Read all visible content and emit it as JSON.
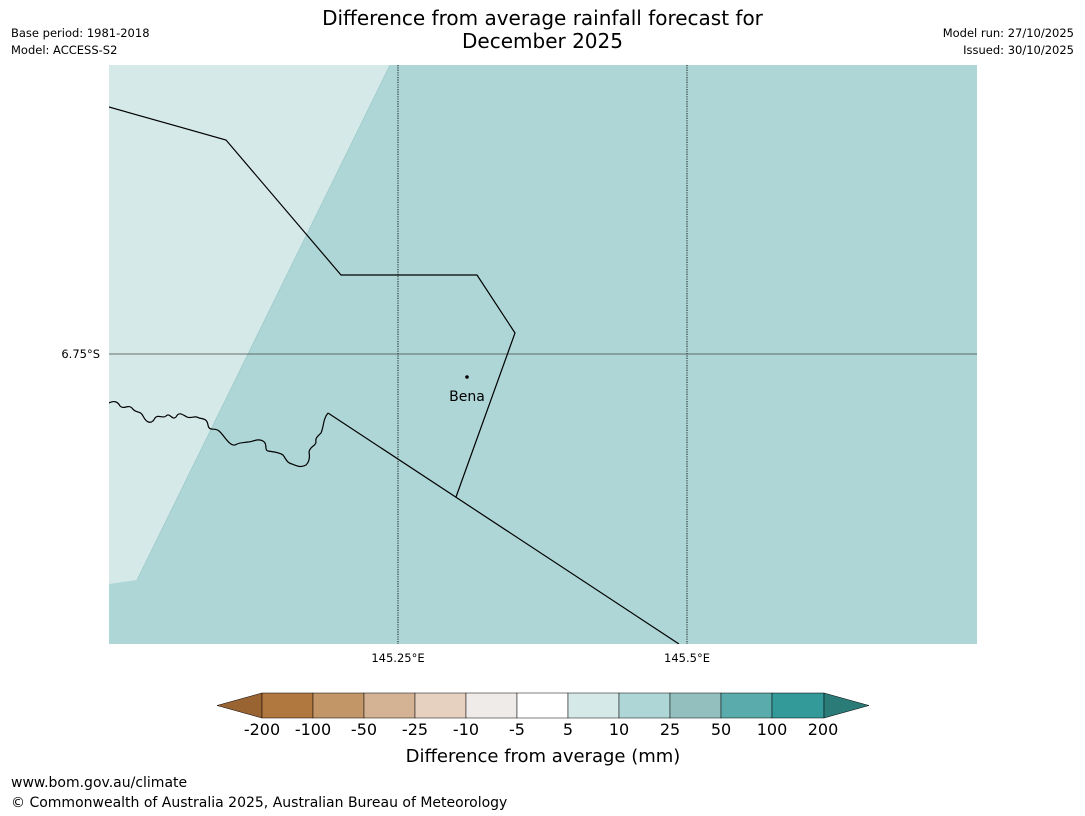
{
  "header": {
    "title_line1": "Difference from average rainfall forecast for",
    "title_line2": "December 2025",
    "base_period": "Base period: 1981-2018",
    "model": "Model: ACCESS-S2",
    "model_run": "Model run: 27/10/2025",
    "issued": "Issued: 30/10/2025"
  },
  "map": {
    "lat_label": "6.75°S",
    "lon_labels": [
      "145.25°E",
      "145.5°E"
    ],
    "place": "Bena",
    "colors": {
      "main_fill": "#aed6d6",
      "light_fill": "#d5e9e8"
    }
  },
  "colorbar": {
    "title": "Difference from average (mm)",
    "labels": [
      "-200",
      "-100",
      "-50",
      "-25",
      "-10",
      "-5",
      "5",
      "10",
      "25",
      "50",
      "100",
      "200"
    ],
    "colors": [
      "#9a6332",
      "#b0773e",
      "#c39668",
      "#d4b394",
      "#e6d0bf",
      "#efebe8",
      "#ffffff",
      "#d5e9e8",
      "#aed6d6",
      "#93c0bf",
      "#5aabab",
      "#339999",
      "#2b7b79"
    ]
  },
  "footer": {
    "url": "www.bom.gov.au/climate",
    "copyright": "© Commonwealth of Australia 2025, Australian Bureau of Meteorology"
  }
}
